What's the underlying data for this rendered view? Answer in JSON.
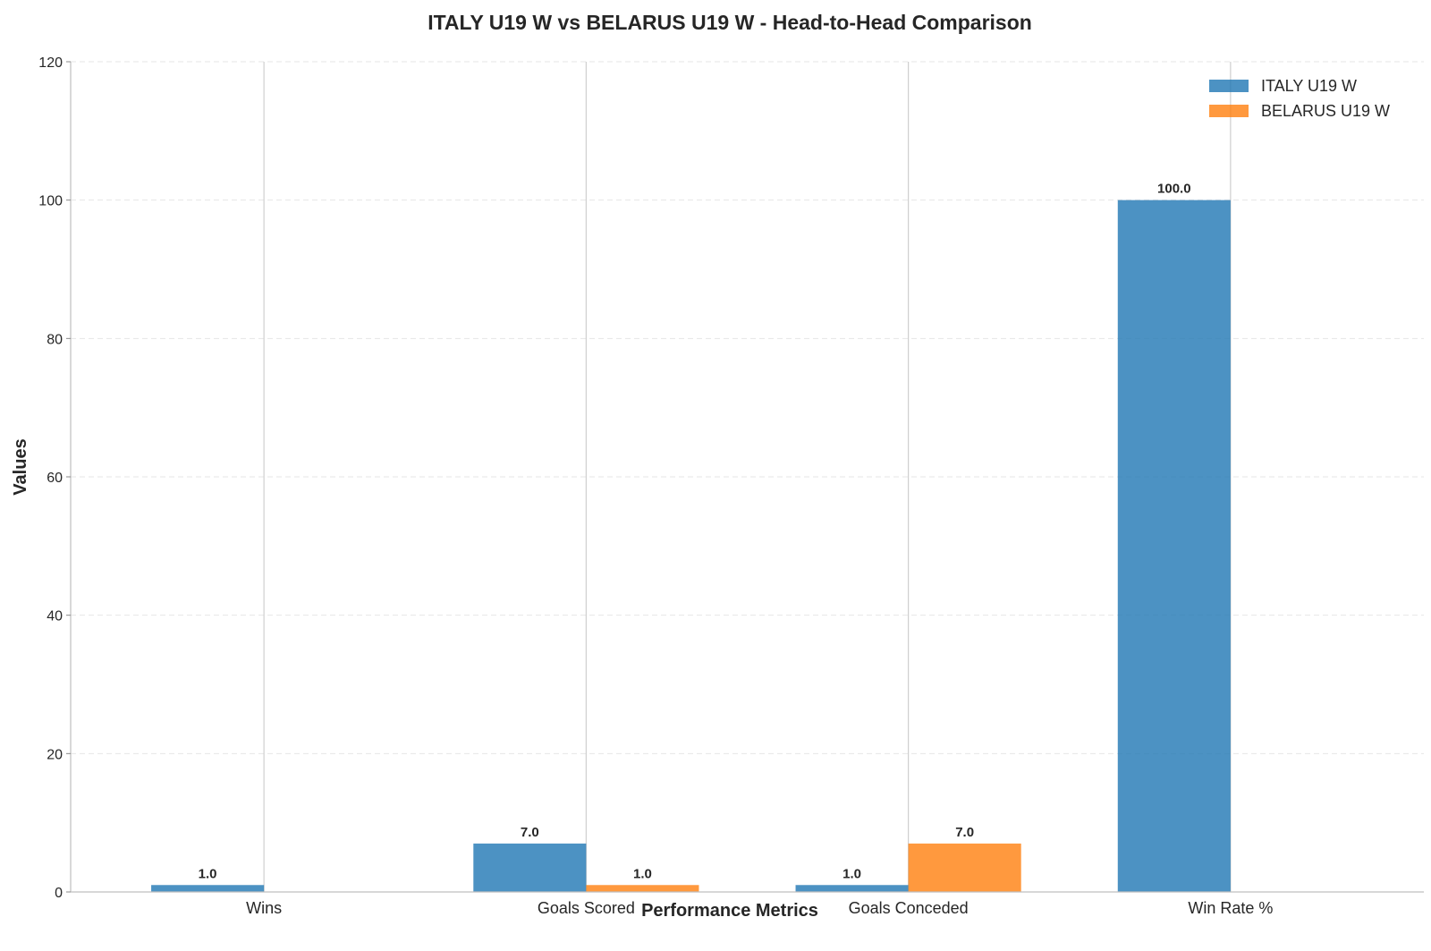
{
  "chart_data": {
    "type": "bar",
    "title": "ITALY U19 W vs BELARUS U19 W - Head-to-Head Comparison",
    "xlabel": "Performance Metrics",
    "ylabel": "Values",
    "categories": [
      "Wins",
      "Goals Scored",
      "Goals Conceded",
      "Win Rate %"
    ],
    "series": [
      {
        "name": "ITALY U19 W",
        "color": "#1f77b4",
        "values": [
          1.0,
          7.0,
          1.0,
          100.0
        ],
        "labels": [
          "1.0",
          "7.0",
          "1.0",
          "100.0"
        ]
      },
      {
        "name": "BELARUS U19 W",
        "color": "#ff7f0e",
        "values": [
          0.0,
          1.0,
          7.0,
          0.0
        ],
        "labels": [
          "",
          "1.0",
          "7.0",
          ""
        ]
      }
    ],
    "ylim": [
      0,
      120
    ],
    "yticks": [
      0,
      20,
      40,
      60,
      80,
      100,
      120
    ],
    "ytick_labels": [
      "0",
      "20",
      "40",
      "60",
      "80",
      "100",
      "120"
    ],
    "grid": true,
    "legend_position": "top-right"
  }
}
